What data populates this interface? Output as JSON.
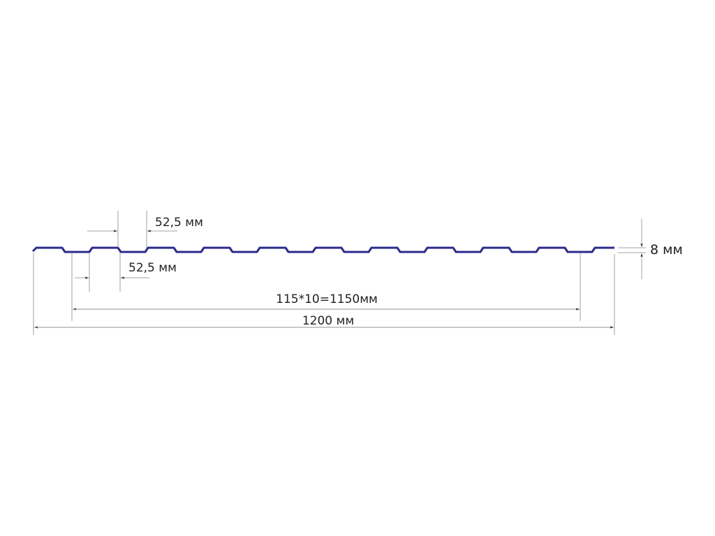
{
  "diagram": {
    "profile_color": "#2b2a8c",
    "labels": {
      "crest_width": "52,5 мм",
      "trough_width": "52,5 мм",
      "height": "8 мм",
      "pitch_total": "115*10=1150мм",
      "total_width": "1200 мм"
    }
  }
}
